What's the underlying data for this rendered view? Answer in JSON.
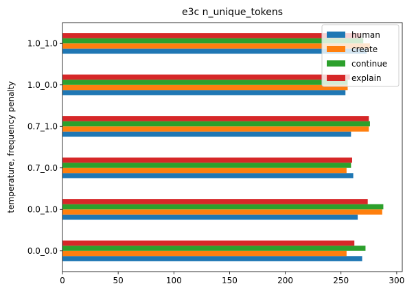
{
  "chart_data": {
    "type": "bar",
    "orientation": "horizontal",
    "title": "e3c n_unique_tokens",
    "xlabel": "",
    "ylabel": "temperature, frequency penalty",
    "categories": [
      "0.0_0.0",
      "0.0_1.0",
      "0.7_0.0",
      "0.7_1.0",
      "1.0_0.0",
      "1.0_1.0"
    ],
    "xlim": [
      0,
      305
    ],
    "xticks": [
      0,
      50,
      100,
      150,
      200,
      250,
      300
    ],
    "series": [
      {
        "name": "human",
        "color": "#1f77b4",
        "values": [
          269,
          265,
          261,
          259,
          254,
          273
        ]
      },
      {
        "name": "create",
        "color": "#ff7f0e",
        "values": [
          255,
          287,
          255,
          275,
          256,
          276
        ]
      },
      {
        "name": "continue",
        "color": "#2ca02c",
        "values": [
          272,
          288,
          259,
          276,
          256,
          270
        ]
      },
      {
        "name": "explain",
        "color": "#d62728",
        "values": [
          262,
          274,
          260,
          275,
          258,
          268
        ]
      }
    ],
    "legend_position": "top-right",
    "grid": false
  }
}
